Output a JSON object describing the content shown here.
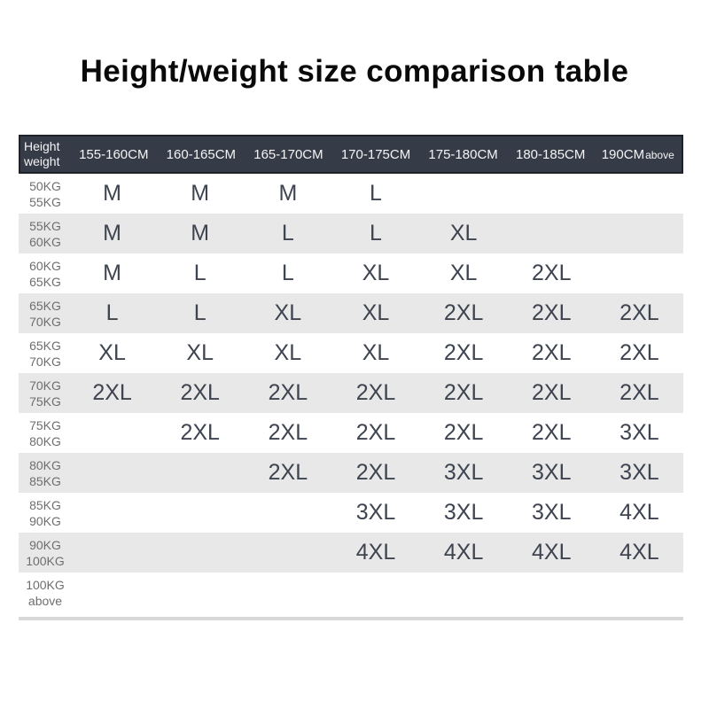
{
  "chart_data": {
    "type": "table",
    "title": "Height/weight size comparison table",
    "corner": [
      "Height",
      "weight"
    ],
    "columns": [
      "155-160CM",
      "160-165CM",
      "165-170CM",
      "170-175CM",
      "175-180CM",
      "180-185CM"
    ],
    "last_column": {
      "main": "190CM",
      "suffix": "above"
    },
    "rows": [
      {
        "weight": [
          "50KG",
          "55KG"
        ],
        "sizes": [
          "M",
          "M",
          "M",
          "L",
          "",
          "",
          ""
        ]
      },
      {
        "weight": [
          "55KG",
          "60KG"
        ],
        "sizes": [
          "M",
          "M",
          "L",
          "L",
          "XL",
          "",
          ""
        ]
      },
      {
        "weight": [
          "60KG",
          "65KG"
        ],
        "sizes": [
          "M",
          "L",
          "L",
          "XL",
          "XL",
          "2XL",
          ""
        ]
      },
      {
        "weight": [
          "65KG",
          "70KG"
        ],
        "sizes": [
          "L",
          "L",
          "XL",
          "XL",
          "2XL",
          "2XL",
          "2XL"
        ]
      },
      {
        "weight": [
          "65KG",
          "70KG"
        ],
        "sizes": [
          "XL",
          "XL",
          "XL",
          "XL",
          "2XL",
          "2XL",
          "2XL"
        ]
      },
      {
        "weight": [
          "70KG",
          "75KG"
        ],
        "sizes": [
          "2XL",
          "2XL",
          "2XL",
          "2XL",
          "2XL",
          "2XL",
          "2XL"
        ]
      },
      {
        "weight": [
          "75KG",
          "80KG"
        ],
        "sizes": [
          "",
          "2XL",
          "2XL",
          "2XL",
          "2XL",
          "2XL",
          "3XL"
        ]
      },
      {
        "weight": [
          "80KG",
          "85KG"
        ],
        "sizes": [
          "",
          "",
          "2XL",
          "2XL",
          "3XL",
          "3XL",
          "3XL"
        ]
      },
      {
        "weight": [
          "85KG",
          "90KG"
        ],
        "sizes": [
          "",
          "",
          "",
          "3XL",
          "3XL",
          "3XL",
          "4XL"
        ]
      },
      {
        "weight": [
          "90KG",
          "100KG"
        ],
        "sizes": [
          "",
          "",
          "",
          "4XL",
          "4XL",
          "4XL",
          "4XL"
        ]
      },
      {
        "weight": [
          "100KG",
          "above"
        ],
        "sizes": [
          "",
          "",
          "",
          "",
          "",
          "",
          ""
        ]
      }
    ]
  },
  "colors": {
    "page_bg": "#ffffff",
    "title_text": "#0a0a0a",
    "header_bg": "#353b47",
    "header_border": "#1e2128",
    "header_text": "#f4f4f4",
    "stripe": "#e8e8e8",
    "size_text": "#3e4450",
    "weight_text": "#6e6e6e",
    "divider": "#d9d9d9"
  }
}
